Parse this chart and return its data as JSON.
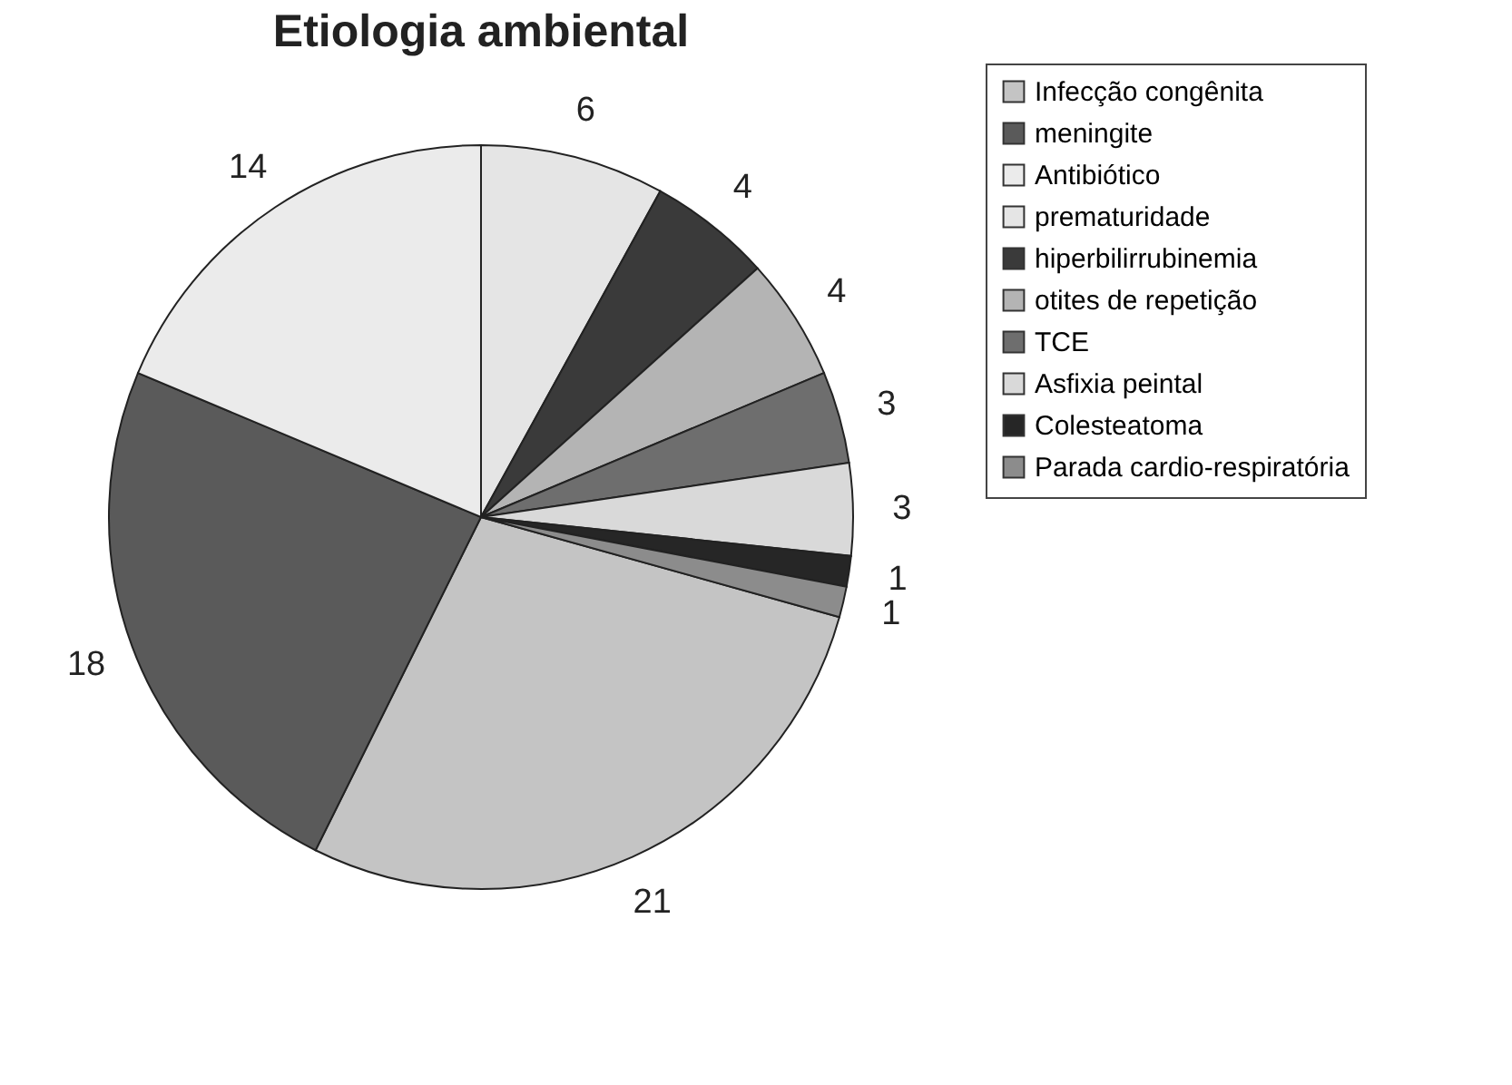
{
  "chart_data": {
    "type": "pie",
    "title": "Etiologia ambiental",
    "categories": [
      "Infecção congênita",
      "meningite",
      "Antibiótico",
      "prematuridade",
      "hiperbilirrubinemia",
      "otites de repetição",
      "TCE",
      "Asfixia peintal",
      "Colesteatoma",
      "Parada cardio-respiratória"
    ],
    "values": [
      21,
      18,
      14,
      6,
      4,
      4,
      3,
      3,
      1,
      1
    ],
    "colors": [
      "#c4c4c4",
      "#5a5a5a",
      "#ebebeb",
      "#e5e5e5",
      "#3a3a3a",
      "#b4b4b4",
      "#6e6e6e",
      "#d9d9d9",
      "#262626",
      "#8c8c8c"
    ],
    "data_labels": true,
    "legend": "right"
  }
}
